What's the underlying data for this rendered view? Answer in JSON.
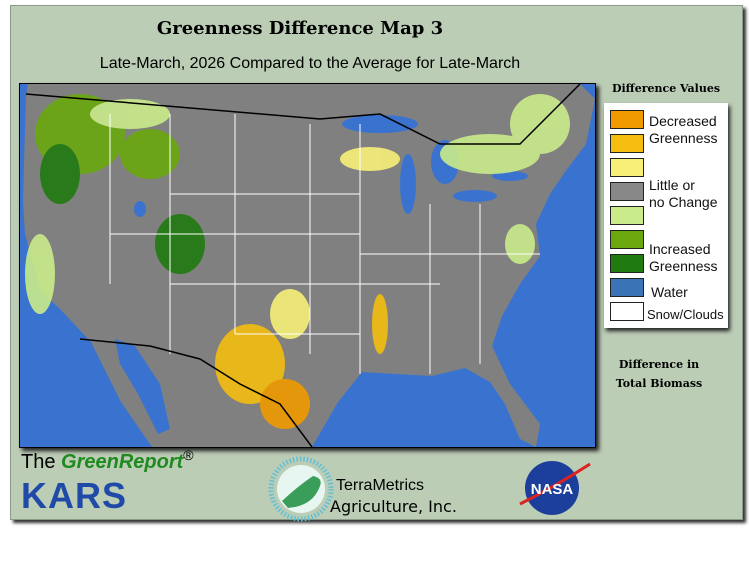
{
  "header": {
    "title": "Greenness Difference Map 3",
    "subtitle": "Late-March, 2026 Compared to the Average for Late-March"
  },
  "legend": {
    "title": "Difference Values",
    "items": [
      {
        "color": "#f09a00"
      },
      {
        "color": "#f4bd10"
      },
      {
        "color": "#f7ef78"
      },
      {
        "color": "#888888"
      },
      {
        "color": "#c9eb8a"
      },
      {
        "color": "#6aa80e"
      },
      {
        "color": "#1f7a0f"
      },
      {
        "color": "#3a73b6"
      },
      {
        "color": "#ffffff"
      }
    ],
    "labels": {
      "decreased_1": "Decreased",
      "decreased_2": "Greenness",
      "little_1": "Little or",
      "little_2": "no Change",
      "increased_1": "Increased",
      "increased_2": "Greenness",
      "water": "Water",
      "snow": "Snow/Clouds"
    },
    "footer_1": "Difference in",
    "footer_2": "Total Biomass"
  },
  "logos": {
    "greenreport_the": "The",
    "greenreport_name": "GreenReport",
    "registered": "®",
    "kars": "KARS",
    "terrametrics_1": "TerraMetrics",
    "terrametrics_2": "Agriculture, Inc.",
    "nasa": "NASA"
  },
  "colors": {
    "panel": "#bccdb6",
    "water": "#3a73cf",
    "land": "#808080"
  }
}
